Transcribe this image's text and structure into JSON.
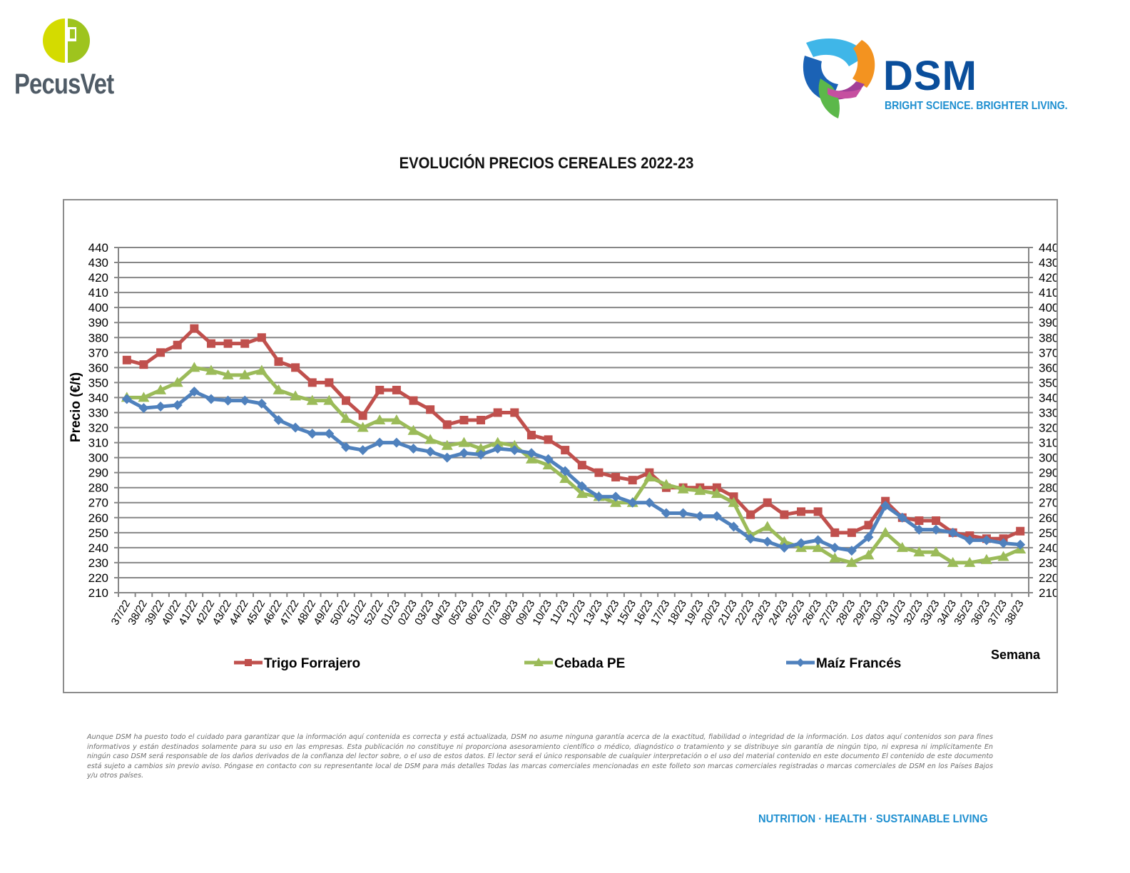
{
  "header": {
    "left_logo_text": "PecusVet",
    "right_logo_text": "DSM",
    "right_logo_tagline": "BRIGHT SCIENCE. BRIGHTER LIVING."
  },
  "chart_data": {
    "type": "line",
    "title": "EVOLUCIÓN PRECIOS CEREALES 2022-23",
    "xlabel": "Semana",
    "ylabel": "Precio (€/t)",
    "ylim": [
      210,
      440
    ],
    "y_ticks": [
      210,
      220,
      230,
      240,
      250,
      260,
      270,
      280,
      290,
      300,
      310,
      320,
      330,
      340,
      350,
      360,
      370,
      380,
      390,
      400,
      410,
      420,
      430,
      440
    ],
    "secondary_y_axis": true,
    "grid": true,
    "legend_position": "bottom",
    "categories": [
      "37/22",
      "38/22",
      "39/22",
      "40/22",
      "41/22",
      "42/22",
      "43/22",
      "44/22",
      "45/22",
      "46/22",
      "47/22",
      "48/22",
      "49/22",
      "50/22",
      "51/22",
      "52/22",
      "01/23",
      "02/23",
      "03/23",
      "04/23",
      "05/23",
      "06/23",
      "07/23",
      "08/23",
      "09/23",
      "10/23",
      "11/23",
      "12/23",
      "13/23",
      "14/23",
      "15/23",
      "16/23",
      "17/23",
      "18/23",
      "19/23",
      "20/23",
      "21/23",
      "22/23",
      "23/23",
      "24/23",
      "25/23",
      "26/23",
      "27/23",
      "28/23",
      "29/23",
      "30/23",
      "31/23",
      "32/23",
      "33/23",
      "34/23",
      "35/23",
      "36/23",
      "37/23",
      "38/23"
    ],
    "series": [
      {
        "name": "Trigo Forrajero",
        "color": "#c0504d",
        "marker": "square",
        "values": [
          365,
          362,
          370,
          375,
          386,
          376,
          376,
          376,
          380,
          364,
          360,
          350,
          350,
          338,
          328,
          345,
          345,
          338,
          332,
          322,
          325,
          325,
          330,
          330,
          315,
          312,
          305,
          295,
          290,
          287,
          285,
          290,
          280,
          280,
          280,
          280,
          274,
          262,
          270,
          262,
          264,
          264,
          250,
          250,
          255,
          271,
          260,
          258,
          258,
          250,
          248,
          246,
          246,
          251
        ]
      },
      {
        "name": "Cebada PE",
        "color": "#9bbb59",
        "marker": "triangle",
        "values": [
          340,
          340,
          345,
          350,
          360,
          358,
          355,
          355,
          358,
          345,
          341,
          338,
          338,
          326,
          320,
          325,
          325,
          318,
          312,
          308,
          310,
          306,
          310,
          308,
          299,
          295,
          286,
          276,
          274,
          270,
          270,
          287,
          282,
          279,
          278,
          276,
          270,
          248,
          254,
          244,
          240,
          240,
          233,
          230,
          235,
          250,
          240,
          237,
          237,
          230,
          230,
          232,
          234,
          239
        ]
      },
      {
        "name": "Maíz Francés",
        "color": "#4f81bd",
        "marker": "diamond",
        "values": [
          339,
          333,
          334,
          335,
          344,
          339,
          338,
          338,
          336,
          325,
          320,
          316,
          316,
          307,
          305,
          310,
          310,
          306,
          304,
          300,
          303,
          302,
          306,
          305,
          303,
          299,
          291,
          281,
          274,
          274,
          270,
          270,
          263,
          263,
          261,
          261,
          254,
          246,
          244,
          240,
          243,
          245,
          240,
          238,
          247,
          268,
          260,
          252,
          252,
          250,
          245,
          245,
          243,
          242
        ]
      }
    ]
  },
  "disclaimer": "Aunque DSM ha puesto todo el cuidado para garantizar que la información aquí contenida es correcta y está actualizada, DSM no asume ninguna garantía acerca de la exactitud, fiabilidad o integridad de la información. Los datos aquí contenidos son para fines informativos y están destinados solamente para su uso en las empresas. Esta publicación no constituye ni proporciona asesoramiento científico o médico, diagnóstico o tratamiento y se distribuye sin garantía de ningún tipo, ni expresa ni implícitamente En ningún caso DSM será responsable de los daños derivados de la confianza del lector sobre, o el uso de estos datos. El lector será el único responsable de cualquier interpretación o el uso del material contenido en este documento El contenido de este documento está sujeto a cambios sin previo aviso. Póngase en contacto con su representante local de DSM para más detalles Todas las marcas comerciales mencionadas en este folleto son marcas comerciales registradas o marcas comerciales de DSM en los Países Bajos y/u otros países.",
  "footer": {
    "tagline": "NUTRITION · HEALTH · SUSTAINABLE LIVING"
  }
}
